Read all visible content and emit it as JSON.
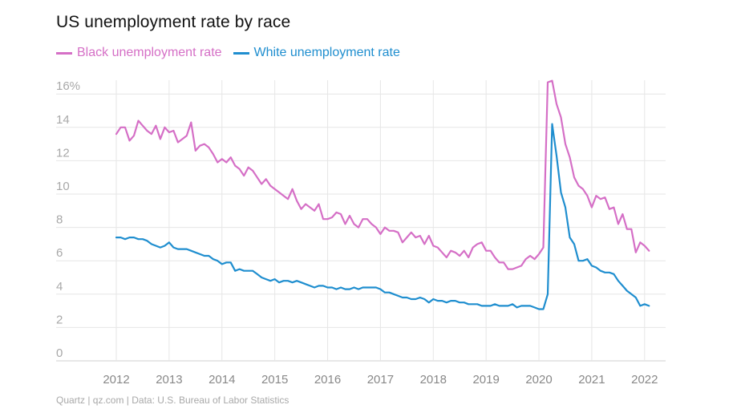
{
  "title": "US unemployment rate by race",
  "source": "Quartz | qz.com | Data: U.S. Bureau of Labor Statistics",
  "chart_data": {
    "type": "line",
    "title": "US unemployment rate by race",
    "y_unit_suffix": "%",
    "ylim": [
      0,
      17
    ],
    "xlim": [
      2012,
      2022.17
    ],
    "grid": true,
    "legend_position": "top-left",
    "y_ticks": [
      0,
      2,
      4,
      6,
      8,
      10,
      12,
      14,
      16
    ],
    "y_tick_labels": [
      "0",
      "2",
      "4",
      "6",
      "8",
      "10",
      "12",
      "14",
      "16%"
    ],
    "x_ticks": [
      2012,
      2013,
      2014,
      2015,
      2016,
      2017,
      2018,
      2019,
      2020,
      2021,
      2022
    ],
    "x_tick_labels": [
      "2012",
      "2013",
      "2014",
      "2015",
      "2016",
      "2017",
      "2018",
      "2019",
      "2020",
      "2021",
      "2022"
    ],
    "series": [
      {
        "name": "Black unemployment rate",
        "color": "#d56fc6",
        "values": [
          13.6,
          14.0,
          14.0,
          13.2,
          13.5,
          14.4,
          14.1,
          13.8,
          13.6,
          14.1,
          13.3,
          14.0,
          13.7,
          13.8,
          13.1,
          13.3,
          13.5,
          14.3,
          12.6,
          12.9,
          13.0,
          12.8,
          12.4,
          11.9,
          12.1,
          11.9,
          12.2,
          11.7,
          11.5,
          11.1,
          11.6,
          11.4,
          11.0,
          10.6,
          10.9,
          10.5,
          10.3,
          10.1,
          9.9,
          9.7,
          10.3,
          9.6,
          9.1,
          9.4,
          9.2,
          9.0,
          9.4,
          8.5,
          8.5,
          8.6,
          8.9,
          8.8,
          8.2,
          8.7,
          8.2,
          8.0,
          8.5,
          8.5,
          8.2,
          8.0,
          7.6,
          8.0,
          7.8,
          7.8,
          7.7,
          7.1,
          7.4,
          7.7,
          7.4,
          7.5,
          7.0,
          7.5,
          6.9,
          6.8,
          6.5,
          6.2,
          6.6,
          6.5,
          6.3,
          6.6,
          6.2,
          6.8,
          7.0,
          7.1,
          6.6,
          6.6,
          6.2,
          5.9,
          5.9,
          5.5,
          5.5,
          5.6,
          5.7,
          6.1,
          6.3,
          6.1,
          6.4,
          6.8,
          16.7,
          16.8,
          15.4,
          14.6,
          13.0,
          12.2,
          11.0,
          10.5,
          10.3,
          9.9,
          9.2,
          9.9,
          9.7,
          9.8,
          9.1,
          9.2,
          8.2,
          8.8,
          7.9,
          7.9,
          6.5,
          7.1,
          6.9,
          6.6
        ]
      },
      {
        "name": "White unemployment rate",
        "color": "#1f8ecf",
        "values": [
          7.4,
          7.4,
          7.3,
          7.4,
          7.4,
          7.3,
          7.3,
          7.2,
          7.0,
          6.9,
          6.8,
          6.9,
          7.1,
          6.8,
          6.7,
          6.7,
          6.7,
          6.6,
          6.5,
          6.4,
          6.3,
          6.3,
          6.1,
          6.0,
          5.8,
          5.9,
          5.9,
          5.4,
          5.5,
          5.4,
          5.4,
          5.4,
          5.2,
          5.0,
          4.9,
          4.8,
          4.9,
          4.7,
          4.8,
          4.8,
          4.7,
          4.8,
          4.7,
          4.6,
          4.5,
          4.4,
          4.5,
          4.5,
          4.4,
          4.4,
          4.3,
          4.4,
          4.3,
          4.3,
          4.4,
          4.3,
          4.4,
          4.4,
          4.4,
          4.4,
          4.3,
          4.1,
          4.1,
          4.0,
          3.9,
          3.8,
          3.8,
          3.7,
          3.7,
          3.8,
          3.7,
          3.5,
          3.7,
          3.6,
          3.6,
          3.5,
          3.6,
          3.6,
          3.5,
          3.5,
          3.4,
          3.4,
          3.4,
          3.3,
          3.3,
          3.3,
          3.4,
          3.3,
          3.3,
          3.3,
          3.4,
          3.2,
          3.3,
          3.3,
          3.3,
          3.2,
          3.1,
          3.1,
          4.0,
          14.2,
          12.3,
          10.1,
          9.2,
          7.4,
          7.0,
          6.0,
          6.0,
          6.1,
          5.7,
          5.6,
          5.4,
          5.3,
          5.3,
          5.2,
          4.8,
          4.5,
          4.2,
          4.0,
          3.8,
          3.3,
          3.4,
          3.3
        ]
      }
    ]
  }
}
